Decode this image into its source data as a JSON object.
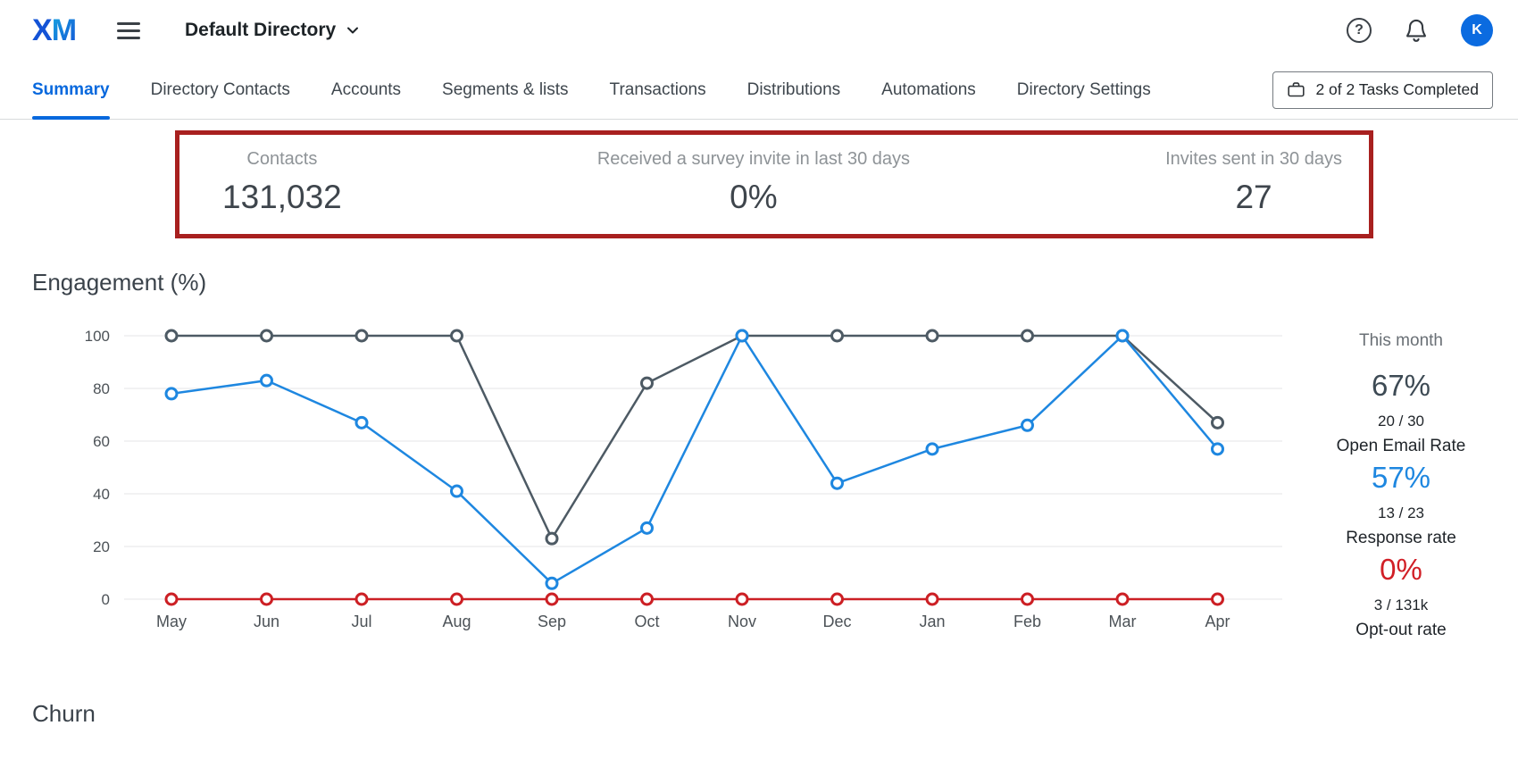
{
  "header": {
    "logo_x": "X",
    "logo_m": "M",
    "directory_name": "Default Directory",
    "avatar_initial": "K"
  },
  "tabs": [
    {
      "label": "Summary",
      "active": true
    },
    {
      "label": "Directory Contacts",
      "active": false
    },
    {
      "label": "Accounts",
      "active": false
    },
    {
      "label": "Segments & lists",
      "active": false
    },
    {
      "label": "Transactions",
      "active": false
    },
    {
      "label": "Distributions",
      "active": false
    },
    {
      "label": "Automations",
      "active": false
    },
    {
      "label": "Directory Settings",
      "active": false
    }
  ],
  "tasks_button": {
    "label": "2 of 2 Tasks Completed"
  },
  "stats": [
    {
      "label": "Contacts",
      "value": "131,032"
    },
    {
      "label": "Received a survey invite in last 30 days",
      "value": "0%"
    },
    {
      "label": "Invites sent in 30 days",
      "value": "27"
    }
  ],
  "chart_data": {
    "type": "line",
    "title": "Engagement (%)",
    "categories": [
      "May",
      "Jun",
      "Jul",
      "Aug",
      "Sep",
      "Oct",
      "Nov",
      "Dec",
      "Jan",
      "Feb",
      "Mar",
      "Apr"
    ],
    "series": [
      {
        "name": "Open Email Rate",
        "color": "#4d5a64",
        "values": [
          100,
          100,
          100,
          100,
          23,
          82,
          100,
          100,
          100,
          100,
          100,
          67
        ]
      },
      {
        "name": "Response rate",
        "color": "#1e87e0",
        "values": [
          78,
          83,
          67,
          41,
          6,
          27,
          100,
          44,
          57,
          66,
          100,
          57
        ]
      },
      {
        "name": "Opt-out rate",
        "color": "#cc1f24",
        "values": [
          0,
          0,
          0,
          0,
          0,
          0,
          0,
          0,
          0,
          0,
          0,
          0
        ]
      }
    ],
    "ylim": [
      0,
      100
    ],
    "yticks": [
      0,
      20,
      40,
      60,
      80,
      100
    ],
    "grid": true,
    "legend": "none"
  },
  "this_month": {
    "title": "This month",
    "metrics": [
      {
        "value": "67%",
        "fraction": "20 / 30",
        "label": "Open Email Rate",
        "color": "#3d4a54"
      },
      {
        "value": "57%",
        "fraction": "13 / 23",
        "label": "Response rate",
        "color": "#1e87e0"
      },
      {
        "value": "0%",
        "fraction": "3 / 131k",
        "label": "Opt-out rate",
        "color": "#d11f26"
      }
    ]
  },
  "churn": {
    "title": "Churn"
  },
  "colors": {
    "accent_blue": "#0768dd",
    "highlight_border_red": "#a8201f"
  }
}
